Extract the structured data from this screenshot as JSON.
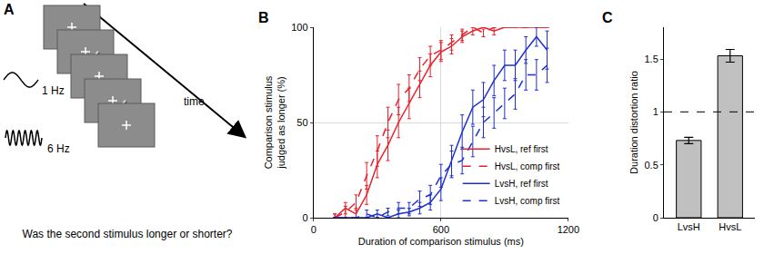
{
  "diagram": {
    "title": "A",
    "time_label": "time",
    "stimuli": [
      {
        "label": "1 Hz"
      },
      {
        "label": "6 Hz"
      }
    ],
    "question": "Was the second stimulus longer or shorter?"
  },
  "chart_data": [
    {
      "type": "line",
      "title": "B",
      "x_label": "Duration of comparison stimulus (ms)",
      "y_label": [
        "Comparison stimulus",
        "judged as longer (%)"
      ],
      "x": [
        100,
        150,
        200,
        250,
        300,
        350,
        400,
        450,
        500,
        550,
        600,
        650,
        700,
        750,
        800,
        850,
        900,
        950,
        1000,
        1050,
        1100
      ],
      "series": [
        {
          "name": "HvsL, ref first",
          "color": "#e8202a",
          "line_style": "solid",
          "values": [
            0,
            5,
            2,
            12,
            28,
            38,
            50,
            60,
            70,
            80,
            87,
            90,
            95,
            98,
            100,
            98,
            100,
            100,
            100,
            100,
            100
          ],
          "errors": [
            2,
            3,
            3,
            5,
            7,
            8,
            8,
            8,
            7,
            6,
            5,
            4,
            3,
            2,
            0,
            2,
            0,
            0,
            0,
            0,
            0
          ]
        },
        {
          "name": "HvsL, comp first",
          "color": "#e8202a",
          "line_style": "dashed",
          "values": [
            0,
            3,
            8,
            22,
            35,
            50,
            62,
            68,
            78,
            85,
            88,
            92,
            96,
            100,
            97,
            100,
            100,
            100,
            100,
            100,
            100
          ],
          "errors": [
            2,
            3,
            4,
            7,
            8,
            8,
            8,
            7,
            6,
            5,
            5,
            4,
            3,
            0,
            2,
            0,
            0,
            0,
            0,
            0,
            0
          ]
        },
        {
          "name": "LvsH, ref first",
          "color": "#1f2fd0",
          "line_style": "solid",
          "values": [
            0,
            0,
            0,
            0,
            2,
            0,
            2,
            3,
            5,
            8,
            15,
            30,
            45,
            58,
            62,
            72,
            80,
            80,
            88,
            95,
            88
          ],
          "errors": [
            0,
            0,
            0,
            0,
            2,
            0,
            2,
            2,
            3,
            4,
            6,
            8,
            9,
            9,
            9,
            8,
            8,
            8,
            7,
            5,
            10
          ]
        },
        {
          "name": "LvsH, comp first",
          "color": "#1f2fd0",
          "line_style": "dashed",
          "values": [
            0,
            0,
            0,
            2,
            0,
            3,
            5,
            5,
            10,
            12,
            22,
            28,
            30,
            40,
            50,
            55,
            60,
            65,
            75,
            75,
            80
          ],
          "errors": [
            0,
            0,
            0,
            2,
            0,
            2,
            3,
            3,
            4,
            5,
            6,
            7,
            7,
            8,
            8,
            8,
            8,
            8,
            8,
            8,
            9
          ]
        }
      ],
      "xlim": [
        0,
        1200
      ],
      "xticks": [
        0,
        600,
        1200
      ],
      "ylim": [
        0,
        100
      ],
      "yticks": [
        0,
        50,
        100
      ],
      "grid": true,
      "legend": "lower right"
    },
    {
      "type": "bar",
      "title": "C",
      "y_label": "Duration distortion ratio",
      "categories": [
        "LvsH",
        "HvsL"
      ],
      "values": [
        0.73,
        1.53
      ],
      "errors": [
        0.03,
        0.06
      ],
      "color": "#c0c0c0",
      "reference_line": 1,
      "ylim": [
        0,
        1.8
      ],
      "yticks": [
        0,
        0.5,
        1,
        1.5
      ]
    }
  ]
}
